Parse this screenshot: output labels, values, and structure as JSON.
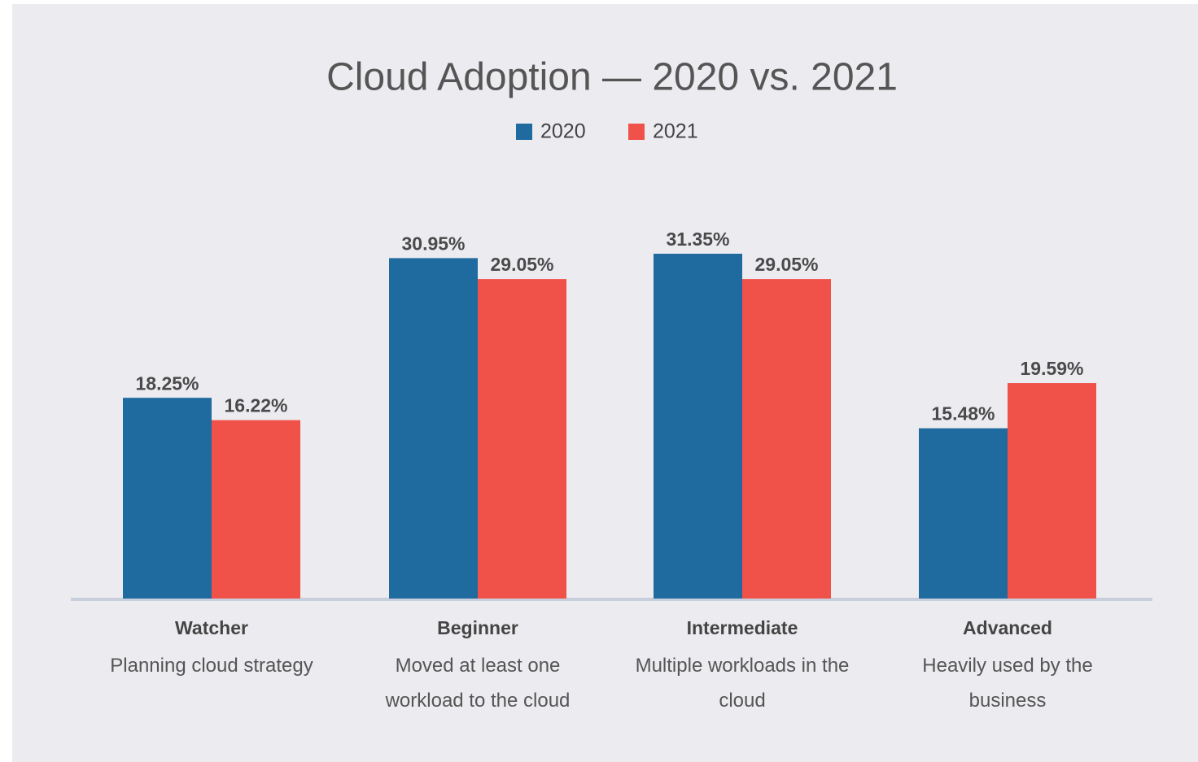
{
  "chart_data": {
    "type": "bar",
    "title": "Cloud Adoption — 2020 vs. 2021",
    "categories": [
      "Watcher",
      "Beginner",
      "Intermediate",
      "Advanced"
    ],
    "descriptions": [
      "Planning cloud strategy",
      "Moved at least one workload to the cloud",
      "Multiple workloads in the cloud",
      "Heavily used by the business"
    ],
    "series": [
      {
        "name": "2020",
        "color": "#1f6a9e",
        "values": [
          18.25,
          30.95,
          31.35,
          15.48
        ],
        "value_labels": [
          "18.25%",
          "30.95%",
          "31.35%",
          "15.48%"
        ]
      },
      {
        "name": "2021",
        "color": "#f05149",
        "values": [
          16.22,
          29.05,
          29.05,
          19.59
        ],
        "value_labels": [
          "16.22%",
          "29.05%",
          "29.05%",
          "19.59%"
        ]
      }
    ],
    "legend": "top"
  }
}
